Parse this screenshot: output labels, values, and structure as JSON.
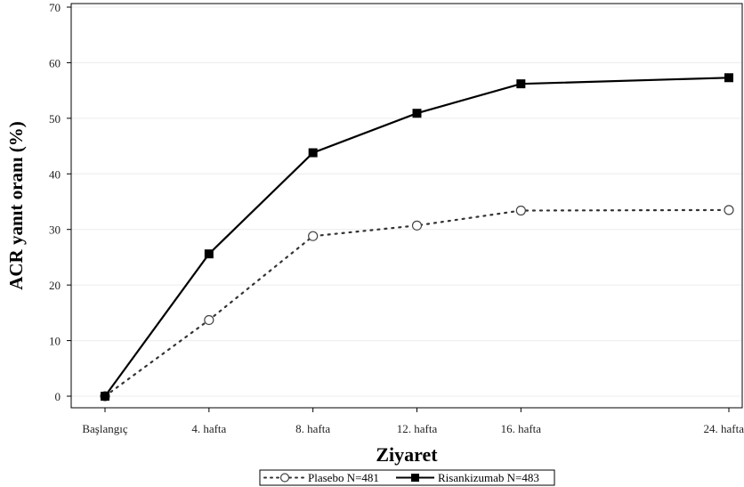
{
  "chart_data": {
    "type": "line",
    "categories": [
      "Başlangıç",
      "4. hafta",
      "8. hafta",
      "12. hafta",
      "16. hafta",
      "24. hafta"
    ],
    "x": [
      0,
      4,
      8,
      12,
      16,
      24
    ],
    "series": [
      {
        "name": "Plasebo N=481",
        "values": [
          0,
          13.7,
          28.8,
          30.7,
          33.4,
          33.5
        ],
        "color": "#333333",
        "style": "dotted",
        "marker": "open-circle"
      },
      {
        "name": "Risankizumab N=483",
        "values": [
          0,
          25.6,
          43.8,
          50.9,
          56.2,
          57.3
        ],
        "color": "#000000",
        "style": "solid",
        "marker": "filled-square"
      }
    ],
    "xlabel": "Ziyaret",
    "ylabel": "ACR yanıt oranı (%)",
    "ylim": [
      0,
      70
    ],
    "yticks": [
      0,
      10,
      20,
      30,
      40,
      50,
      60,
      70
    ],
    "grid": true,
    "legend": "bottom"
  }
}
